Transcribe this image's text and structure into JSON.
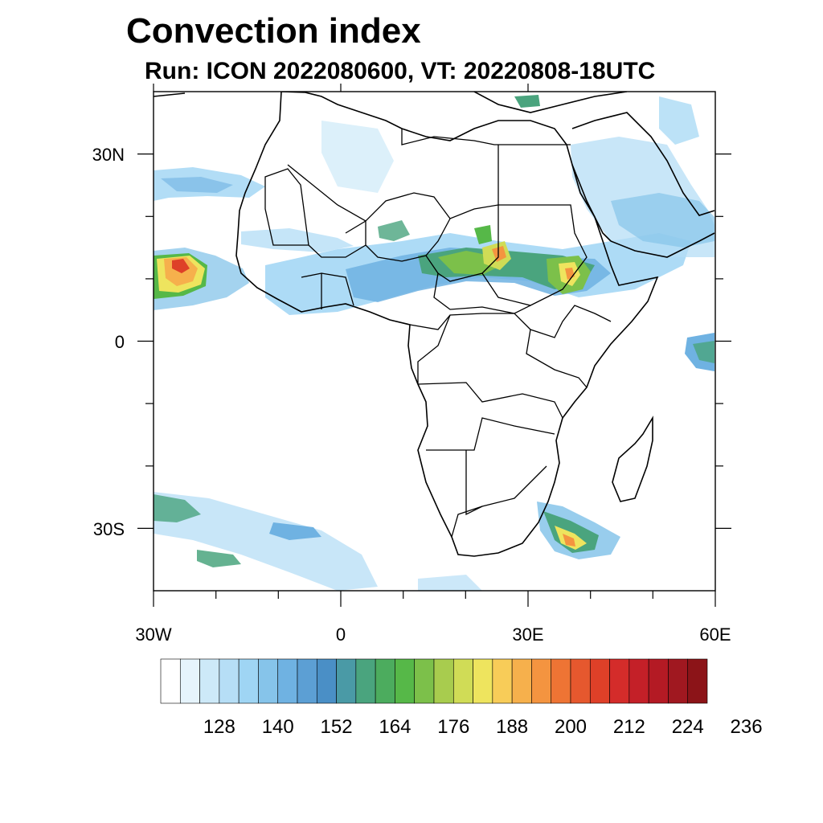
{
  "header": {
    "title": "Convection index",
    "subtitle": "Run: ICON 2022080600,  VT: 20220808-18UTC"
  },
  "axes": {
    "lat_ticks": [
      {
        "lat": 30,
        "label": "30N"
      },
      {
        "lat": 0,
        "label": "0"
      },
      {
        "lat": -30,
        "label": "30S"
      }
    ],
    "lon_ticks": [
      {
        "lon": -30,
        "label": "30W"
      },
      {
        "lon": 0,
        "label": "0"
      },
      {
        "lon": 30,
        "label": "30E"
      },
      {
        "lon": 60,
        "label": "60E"
      }
    ],
    "lon_range": [
      -30,
      60
    ],
    "lat_range": [
      -40,
      40
    ]
  },
  "colorbar": {
    "colors": [
      "#ffffff",
      "#e6f4fc",
      "#cde9f8",
      "#b6def6",
      "#9fd5f4",
      "#86c4ea",
      "#6fb2e2",
      "#5c9fd4",
      "#4a8fc6",
      "#4a9aa6",
      "#4aa47e",
      "#4cac5e",
      "#56b848",
      "#7cc04a",
      "#a8cc4e",
      "#d0dc56",
      "#eee45e",
      "#f8cc58",
      "#f6b04c",
      "#f49440",
      "#ee7434",
      "#e6582e",
      "#de4028",
      "#d42c2a",
      "#c42028",
      "#b41a24",
      "#a01820",
      "#8c1418"
    ],
    "labels": [
      "128",
      "140",
      "152",
      "164",
      "176",
      "188",
      "200",
      "212",
      "224",
      "236"
    ]
  }
}
